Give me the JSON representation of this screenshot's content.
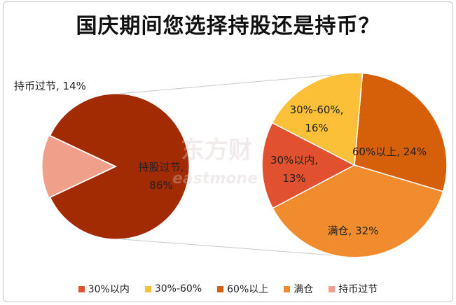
{
  "chart_data": {
    "type": "pie",
    "title": "国庆期间您选择持股还是持币？",
    "left_pie": {
      "slices": [
        {
          "label": "持股过节",
          "value": 86,
          "label_text": "持股过节,",
          "pct_text": "86%",
          "color": "#a32b04"
        },
        {
          "label": "持币过节",
          "value": 14,
          "label_text": "持币过节, 14%",
          "color": "#f0a08a"
        }
      ]
    },
    "right_pie": {
      "slices": [
        {
          "label": "60%以上",
          "value": 24,
          "label_text": "60%以上, 24%",
          "color": "#d65f09"
        },
        {
          "label": "满仓",
          "value": 32,
          "label_text": "满仓, 32%",
          "color": "#f08c2d"
        },
        {
          "label": "30%以内",
          "value": 13,
          "label_text": "30%以内,",
          "pct_text": "13%",
          "color": "#e2512f"
        },
        {
          "label": "30%-60%",
          "value": 16,
          "label_text": "30%-60%,",
          "pct_text": "16%",
          "color": "#fbc038"
        }
      ]
    },
    "legend": [
      {
        "label": "30%以内",
        "color": "#e2512f"
      },
      {
        "label": "30%-60%",
        "color": "#fbc038"
      },
      {
        "label": "60%以上",
        "color": "#d65f09"
      },
      {
        "label": "满仓",
        "color": "#f08c2d"
      },
      {
        "label": "持币过节",
        "color": "#f0a08a"
      }
    ],
    "legend_position": "bottom"
  },
  "watermark": {
    "cn": "东方财",
    "en": "eastmone"
  }
}
